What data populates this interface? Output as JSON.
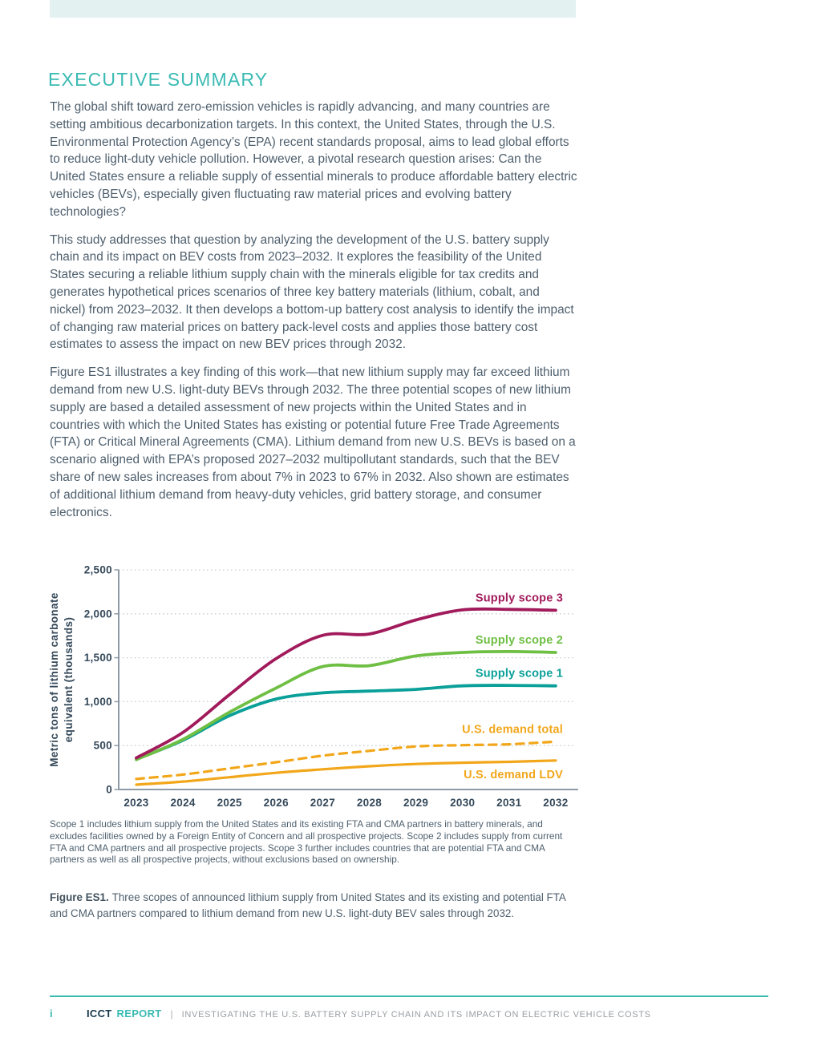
{
  "theme": {
    "accent_teal": "#3ABAB3",
    "top_bar_color": "#E3F1F0",
    "body_text_color": "#4E5F6D",
    "axis_text_color": "#35495A",
    "axis_line_color": "#8E9BA6",
    "gridline_color": "#C9CED1",
    "footer_gray": "#999EA3"
  },
  "header": {
    "title": "EXECUTIVE SUMMARY"
  },
  "paragraphs": [
    "The global shift toward zero-emission vehicles is rapidly advancing, and many countries are setting ambitious decarbonization targets. In this context, the United States, through the U.S. Environmental Protection Agency’s (EPA) recent standards proposal, aims to lead global efforts to reduce light-duty vehicle pollution. However, a pivotal research question arises: Can the United States ensure a reliable supply of essential minerals to produce affordable battery electric vehicles (BEVs), especially given fluctuating raw material prices and evolving battery technologies?",
    "This study addresses that question by analyzing the development of the U.S. battery supply chain and its impact on BEV costs from 2023–2032. It explores the feasibility of the United States securing a reliable lithium supply chain with the minerals eligible for tax credits and generates hypothetical prices scenarios of three key battery materials (lithium, cobalt, and nickel) from 2023–2032. It then develops a bottom-up battery cost analysis to identify the impact of changing raw material prices on battery pack-level costs and applies those battery cost estimates to assess the impact on new BEV prices through 2032.",
    "Figure ES1 illustrates a key finding of this work—that new lithium supply may far exceed lithium demand from new U.S. light-duty BEVs through 2032. The three potential scopes of new lithium supply are based a detailed assessment of new projects within the United States and in countries with which the United States has existing or potential future Free Trade Agreements (FTA) or Critical Mineral Agreements (CMA). Lithium demand from new U.S. BEVs is based on a scenario aligned with EPA’s proposed 2027–2032 multipollutant standards, such that the BEV share of new sales increases from about 7% in 2023 to 67% in 2032. Also shown are estimates of additional lithium demand from heavy-duty vehicles, grid battery storage, and consumer electronics."
  ],
  "chart_data": {
    "type": "line",
    "ylabel_line1": "Metric tons of lithium carbonate",
    "ylabel_line2": "equivalent (thousands)",
    "x": [
      2023,
      2024,
      2025,
      2026,
      2027,
      2028,
      2029,
      2030,
      2031,
      2032
    ],
    "ylim": [
      0,
      2500
    ],
    "yticks": [
      0,
      500,
      1000,
      1500,
      2000,
      2500
    ],
    "ytick_labels": [
      "0",
      "500",
      "1,000",
      "1,500",
      "2,000",
      "2,500"
    ],
    "grid": "horizontal dotted",
    "legend_position": "end-of-line labels at right",
    "series": [
      {
        "name": "Supply scope 3",
        "color": "#A11A5B",
        "style": "solid",
        "stroke_width": 3.8,
        "label_below": false,
        "values": [
          360,
          650,
          1080,
          1490,
          1755,
          1770,
          1930,
          2045,
          2050,
          2040
        ]
      },
      {
        "name": "Supply scope 2",
        "color": "#6FBF44",
        "style": "solid",
        "stroke_width": 3.8,
        "label_below": false,
        "values": [
          340,
          570,
          880,
          1155,
          1400,
          1410,
          1520,
          1560,
          1570,
          1560
        ]
      },
      {
        "name": "Supply scope 1",
        "color": "#0AA099",
        "style": "solid",
        "stroke_width": 3.8,
        "label_below": false,
        "values": [
          345,
          560,
          840,
          1030,
          1100,
          1120,
          1140,
          1180,
          1185,
          1180
        ]
      },
      {
        "name": "U.S. demand total",
        "color": "#F2A71B",
        "style": "dashed",
        "stroke_width": 3.2,
        "label_below": false,
        "values": [
          120,
          170,
          240,
          310,
          385,
          440,
          490,
          505,
          515,
          545
        ]
      },
      {
        "name": "U.S. demand LDV",
        "color": "#F2A71B",
        "style": "solid",
        "stroke_width": 3.2,
        "label_below": true,
        "values": [
          55,
          90,
          140,
          190,
          230,
          265,
          290,
          305,
          315,
          330
        ]
      }
    ]
  },
  "chart_note": "Scope 1 includes lithium supply from the United States and its existing FTA and CMA partners in battery minerals, and excludes facilities owned by a Foreign Entity of Concern and all prospective projects. Scope 2 includes supply from current FTA and CMA partners and all prospective projects. Scope 3 further includes countries that are potential FTA and CMA partners as well as all prospective projects, without exclusions based on ownership.",
  "figure_caption": {
    "label": "Figure ES1.",
    "text": "Three scopes of announced lithium supply from United States and its existing and potential FTA and CMA partners compared to lithium demand from new U.S. light-duty BEV sales through 2032."
  },
  "footer": {
    "page_number": "i",
    "brand": "ICCT",
    "brand_type": "REPORT",
    "separator": "|",
    "report_title": "INVESTIGATING THE U.S. BATTERY SUPPLY CHAIN AND ITS IMPACT ON ELECTRIC VEHICLE COSTS"
  }
}
